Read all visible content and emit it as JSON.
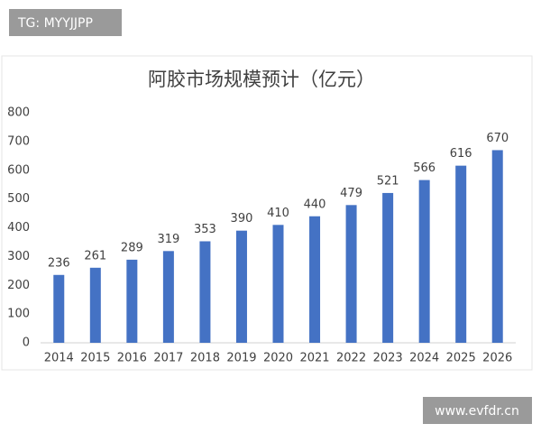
{
  "watermarks": [
    "TG: MYYJJPP",
    "www.evfdr.cn"
  ],
  "chart_data": {
    "type": "bar",
    "title": "阿胶市场规模预计（亿元）",
    "categories": [
      "2014",
      "2015",
      "2016",
      "2017",
      "2018",
      "2019",
      "2020",
      "2021",
      "2022",
      "2023",
      "2024",
      "2025",
      "2026"
    ],
    "values": [
      236,
      261,
      289,
      319,
      353,
      390,
      410,
      440,
      479,
      521,
      566,
      616,
      670
    ],
    "color": "#4472c4",
    "ylim": [
      0,
      800
    ],
    "yticks": [
      0,
      100,
      200,
      300,
      400,
      500,
      600,
      700,
      800
    ],
    "grid": false,
    "data_labels": true
  }
}
